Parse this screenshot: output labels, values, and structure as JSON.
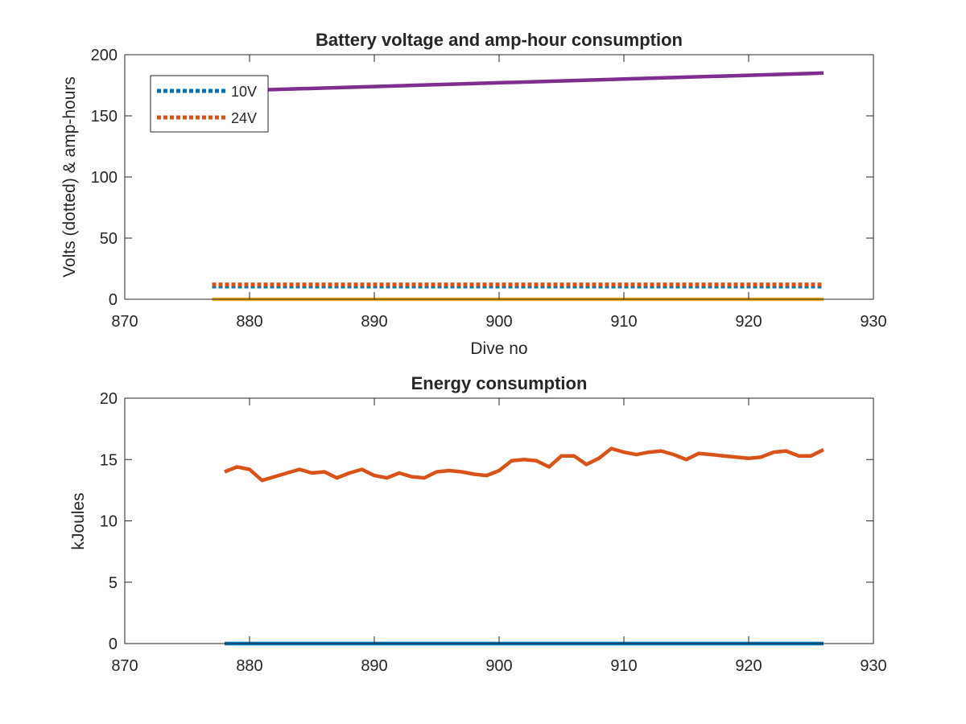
{
  "chart_data": [
    {
      "type": "line",
      "title": "Battery voltage and amp-hour consumption",
      "xlabel": "Dive no",
      "ylabel": "Volts (dotted) & amp-hours",
      "xlim": [
        870,
        930
      ],
      "ylim": [
        0,
        200
      ],
      "xticks": [
        870,
        880,
        890,
        900,
        910,
        920,
        930
      ],
      "yticks": [
        0,
        50,
        100,
        150,
        200
      ],
      "grid": false,
      "legend_position": "top-left",
      "series": [
        {
          "name": "10V",
          "color": "#0072BD",
          "style": "dotted",
          "x": [
            877,
            926
          ],
          "y": [
            10.5,
            10.5
          ]
        },
        {
          "name": "24V",
          "color": "#D95319",
          "style": "dotted",
          "x": [
            877,
            926
          ],
          "y": [
            12,
            12
          ]
        },
        {
          "color": "#EDB120",
          "style": "solid",
          "x": [
            877,
            926
          ],
          "y": [
            0,
            0
          ]
        },
        {
          "color": "#7E2F8E",
          "style": "solid",
          "x": [
            877,
            926
          ],
          "y": [
            170,
            185
          ]
        }
      ]
    },
    {
      "type": "line",
      "title": "Energy consumption",
      "xlabel": "",
      "ylabel": "kJoules",
      "xlim": [
        870,
        930
      ],
      "ylim": [
        0,
        20
      ],
      "xticks": [
        870,
        880,
        890,
        900,
        910,
        920,
        930
      ],
      "yticks": [
        0,
        5,
        10,
        15,
        20
      ],
      "grid": false,
      "series": [
        {
          "color": "#0072BD",
          "style": "solid",
          "x": [
            878,
            926
          ],
          "y": [
            0,
            0
          ]
        },
        {
          "color": "#D95319",
          "style": "solid",
          "x": [
            878,
            879,
            880,
            881,
            882,
            883,
            884,
            885,
            886,
            887,
            888,
            889,
            890,
            891,
            892,
            893,
            894,
            895,
            896,
            897,
            898,
            899,
            900,
            901,
            902,
            903,
            904,
            905,
            906,
            907,
            908,
            909,
            910,
            911,
            912,
            913,
            914,
            915,
            916,
            917,
            918,
            919,
            920,
            921,
            922,
            923,
            924,
            925,
            926
          ],
          "y": [
            14.0,
            14.4,
            14.2,
            13.3,
            13.6,
            13.9,
            14.2,
            13.9,
            14.0,
            13.5,
            13.9,
            14.2,
            13.7,
            13.5,
            13.9,
            13.6,
            13.5,
            14.0,
            14.1,
            14.0,
            13.8,
            13.7,
            14.1,
            14.9,
            15.0,
            14.9,
            14.4,
            15.3,
            15.3,
            14.6,
            15.1,
            15.9,
            15.6,
            15.4,
            15.6,
            15.7,
            15.4,
            15.0,
            15.5,
            15.4,
            15.3,
            15.2,
            15.1,
            15.2,
            15.6,
            15.7,
            15.3,
            15.3,
            15.8
          ]
        }
      ]
    }
  ]
}
